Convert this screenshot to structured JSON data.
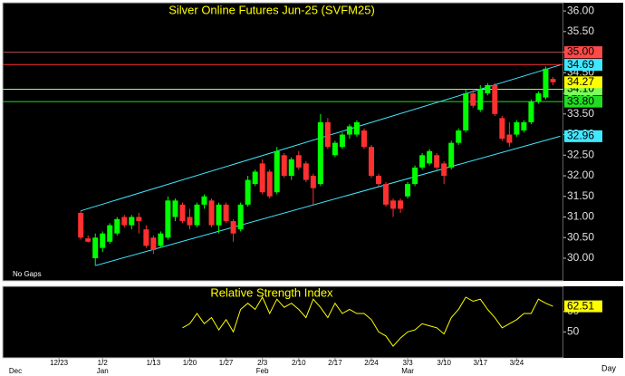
{
  "chart_data": [
    {
      "type": "candlestick",
      "title": "Silver Online Futures Jun-25 (SVFM25)",
      "note": "No Gaps",
      "period_label": "Day",
      "categories": [
        null,
        null,
        null,
        null,
        null,
        null,
        "12/23",
        null,
        null,
        null,
        null,
        null,
        "1/2",
        null,
        null,
        null,
        null,
        null,
        null,
        "1/13",
        null,
        null,
        null,
        null,
        "1/20",
        null,
        null,
        null,
        null,
        "1/27",
        null,
        null,
        null,
        null,
        "2/3",
        null,
        null,
        null,
        null,
        "2/10",
        null,
        null,
        null,
        null,
        "2/17",
        null,
        null,
        null,
        null,
        "2/24",
        null,
        null,
        null,
        null,
        "3/3",
        null,
        null,
        null,
        null,
        "3/10",
        null,
        null,
        null,
        null,
        "3/17",
        null,
        null,
        null,
        null,
        "3/24",
        null,
        null,
        null,
        null,
        null
      ],
      "month_labels": [
        "Dec",
        null,
        null,
        null,
        null,
        null,
        null,
        null,
        null,
        null,
        null,
        null,
        "Jan",
        null,
        null,
        null,
        null,
        null,
        null,
        null,
        null,
        null,
        null,
        null,
        null,
        null,
        null,
        null,
        null,
        null,
        null,
        null,
        null,
        null,
        "Feb",
        null,
        null,
        null,
        null,
        null,
        null,
        null,
        null,
        null,
        null,
        null,
        null,
        null,
        null,
        null,
        null,
        null,
        null,
        null,
        "Mar",
        null,
        null,
        null,
        null,
        null,
        null,
        null,
        null,
        null,
        null,
        null,
        null,
        null,
        null,
        null,
        null,
        null,
        null,
        null,
        null
      ],
      "open": [
        null,
        null,
        null,
        null,
        null,
        null,
        null,
        null,
        null,
        31.1,
        30.48,
        30.0,
        30.25,
        30.4,
        30.6,
        31.0,
        30.8,
        31.0,
        30.7,
        30.5,
        30.3,
        30.5,
        31.0,
        31.3,
        31.0,
        30.8,
        31.3,
        31.4,
        30.8,
        31.3,
        30.9,
        30.7,
        31.3,
        31.8,
        32.3,
        32.1,
        31.6,
        32.5,
        32.0,
        32.5,
        32.3,
        32.0,
        31.8,
        33.3,
        32.5,
        32.7,
        33.0,
        33.0,
        33.1,
        32.7,
        32.0,
        31.8,
        31.4,
        31.4,
        31.5,
        31.8,
        32.2,
        32.3,
        32.5,
        32.3,
        32.2,
        32.8,
        33.1,
        34.0,
        33.6,
        34.0,
        34.2,
        33.4,
        33.0,
        33.0,
        33.1,
        33.3,
        33.8,
        33.9,
        34.35
      ],
      "high": [
        null,
        null,
        null,
        null,
        null,
        null,
        null,
        null,
        null,
        31.15,
        30.55,
        30.6,
        30.65,
        30.85,
        31.0,
        31.05,
        31.05,
        31.1,
        30.8,
        30.55,
        30.65,
        31.5,
        31.45,
        31.35,
        31.2,
        31.35,
        31.55,
        31.45,
        31.35,
        31.35,
        30.95,
        31.35,
        32.0,
        32.15,
        32.4,
        32.15,
        32.7,
        32.55,
        32.45,
        32.6,
        32.35,
        32.05,
        33.5,
        33.4,
        32.85,
        33.05,
        33.25,
        33.35,
        33.15,
        32.75,
        32.05,
        31.85,
        31.45,
        31.45,
        31.85,
        32.25,
        32.55,
        32.65,
        32.55,
        32.35,
        32.85,
        33.15,
        34.1,
        34.1,
        34.2,
        34.25,
        34.25,
        33.45,
        33.3,
        33.35,
        33.35,
        33.85,
        34.05,
        34.65,
        34.4
      ],
      "low": [
        null,
        null,
        null,
        null,
        null,
        null,
        null,
        null,
        null,
        30.45,
        30.38,
        29.82,
        30.15,
        30.35,
        30.55,
        30.75,
        30.7,
        30.6,
        30.25,
        30.1,
        30.25,
        30.45,
        30.9,
        30.85,
        30.7,
        30.75,
        31.2,
        30.75,
        30.6,
        30.85,
        30.4,
        30.65,
        31.25,
        31.75,
        31.55,
        31.45,
        31.55,
        31.95,
        31.9,
        32.15,
        31.85,
        31.3,
        31.75,
        32.65,
        32.45,
        32.65,
        32.9,
        32.95,
        32.65,
        31.95,
        31.75,
        31.25,
        31.0,
        31.1,
        31.45,
        31.75,
        32.15,
        32.25,
        32.15,
        31.8,
        32.15,
        32.75,
        33.05,
        33.65,
        33.55,
        33.95,
        33.45,
        32.85,
        32.7,
        32.95,
        33.05,
        33.25,
        33.75,
        33.85,
        34.2
      ],
      "close": [
        null,
        null,
        null,
        null,
        null,
        null,
        null,
        null,
        null,
        30.5,
        30.4,
        30.5,
        30.6,
        30.8,
        30.95,
        30.8,
        31.0,
        30.9,
        30.3,
        30.2,
        30.6,
        31.4,
        31.4,
        30.9,
        30.8,
        31.3,
        31.5,
        30.8,
        31.3,
        30.9,
        30.6,
        31.3,
        31.9,
        32.1,
        31.6,
        31.5,
        32.6,
        32.0,
        32.4,
        32.2,
        31.9,
        31.7,
        33.3,
        32.7,
        32.8,
        33.0,
        33.2,
        33.3,
        32.7,
        32.0,
        31.8,
        31.3,
        31.2,
        31.2,
        31.8,
        32.2,
        32.5,
        32.6,
        32.2,
        32.0,
        32.8,
        33.1,
        34.0,
        33.7,
        34.1,
        34.2,
        33.5,
        32.9,
        32.8,
        33.3,
        33.3,
        33.8,
        34.0,
        34.6,
        34.27
      ],
      "up_color": "#00ff00",
      "down_color": "#ff3030",
      "ylim": [
        29.45,
        36.2
      ],
      "yticks": [
        {
          "value": 30,
          "label": "30.00"
        },
        {
          "value": 30.5,
          "label": "30.50"
        },
        {
          "value": 31,
          "label": "31.00"
        },
        {
          "value": 31.5,
          "label": "31.50"
        },
        {
          "value": 32,
          "label": "32.00"
        },
        {
          "value": 32.5,
          "label": "32.50"
        },
        {
          "value": 33,
          "label": "33.00"
        },
        {
          "value": 33.5,
          "label": "33.50"
        },
        {
          "value": 34,
          "label": "34.00"
        },
        {
          "value": 34.5,
          "label": "34.50"
        },
        {
          "value": 35,
          "label": "35.00"
        },
        {
          "value": 35.5,
          "label": "35.50"
        },
        {
          "value": 36,
          "label": "36.00"
        }
      ],
      "levels": [
        {
          "value": 35,
          "label": "35.00",
          "color": "#ff4a4a",
          "line_color": "#b05050"
        },
        {
          "value": 34.7,
          "label": "34.70",
          "color": "#ff3030",
          "line_color": "#ff3030"
        },
        {
          "value": 34.1,
          "label": "34.10",
          "color": "#7cff5a",
          "line_color": "#9cff6a"
        },
        {
          "value": 33.8,
          "label": "33.80",
          "color": "#22dd22",
          "line_color": "#22dd22"
        }
      ],
      "channels": [
        {
          "from": [
            9,
            31.15
          ],
          "to": [
            75,
            34.69
          ],
          "color": "#40e8ff"
        },
        {
          "from": [
            11,
            29.82
          ],
          "to": [
            75,
            32.96
          ],
          "color": "#40e8ff"
        }
      ],
      "last_color": "#ffff00"
    },
    {
      "type": "line",
      "title": "Relative Strength Index",
      "color": "#ffff00",
      "values": [
        null,
        null,
        null,
        null,
        null,
        null,
        null,
        null,
        null,
        null,
        null,
        null,
        null,
        null,
        null,
        null,
        null,
        null,
        null,
        null,
        null,
        null,
        null,
        52,
        54,
        59,
        54,
        57,
        51,
        56,
        50,
        61,
        64,
        61,
        67,
        59,
        66,
        62,
        64,
        61,
        57,
        66,
        62,
        57,
        64,
        59,
        61,
        59,
        59,
        56,
        50,
        48,
        43,
        47,
        50,
        51,
        54,
        53,
        52,
        49,
        57,
        61,
        67,
        65,
        66,
        61,
        57,
        52,
        54,
        56,
        59,
        59,
        66,
        64,
        62.51
      ],
      "ylim": [
        37.3,
        72.3
      ],
      "yticks": [
        50,
        60
      ]
    }
  ]
}
